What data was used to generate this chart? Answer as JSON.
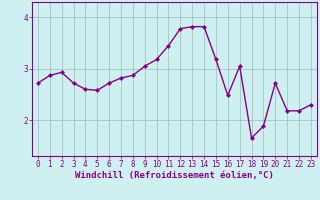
{
  "x": [
    0,
    1,
    2,
    3,
    4,
    5,
    6,
    7,
    8,
    9,
    10,
    11,
    12,
    13,
    14,
    15,
    16,
    17,
    18,
    19,
    20,
    21,
    22,
    23
  ],
  "y": [
    2.72,
    2.87,
    2.93,
    2.72,
    2.6,
    2.58,
    2.72,
    2.82,
    2.87,
    3.05,
    3.18,
    3.45,
    3.78,
    3.82,
    3.82,
    3.18,
    2.48,
    3.05,
    1.65,
    1.88,
    2.72,
    2.18,
    2.18,
    2.3
  ],
  "line_color": "#880088",
  "marker": "D",
  "marker_size": 2.0,
  "line_width": 1.0,
  "background_color": "#cff0f0",
  "grid_color": "#99bbbb",
  "xlabel": "Windchill (Refroidissement éolien,°C)",
  "xlabel_fontsize": 6.5,
  "yticks": [
    2,
    3,
    4
  ],
  "ylim": [
    1.3,
    4.3
  ],
  "xlim": [
    -0.5,
    23.5
  ],
  "tick_fontsize": 5.5,
  "spine_color": "#880088",
  "label_color": "#880088"
}
